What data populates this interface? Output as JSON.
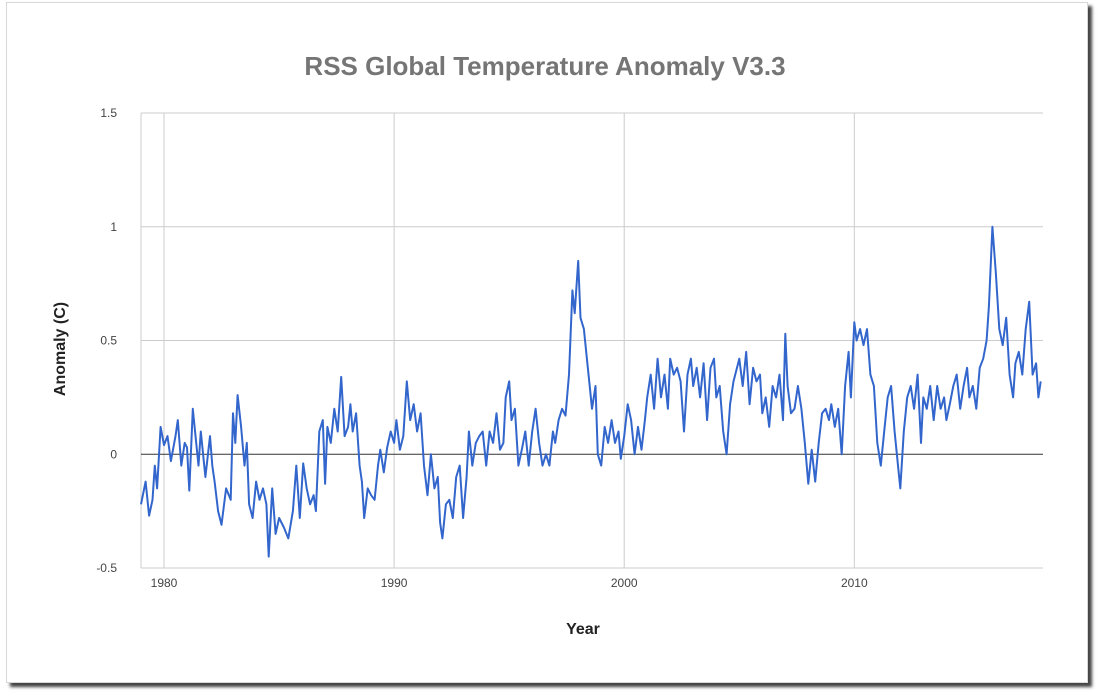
{
  "chart_data": {
    "type": "line",
    "title": "RSS Global Temperature Anomaly V3.3",
    "xlabel": "Year",
    "ylabel": "Anomaly (C)",
    "xlim": [
      1979,
      2018.2
    ],
    "ylim": [
      -0.5,
      1.5
    ],
    "x_ticks": [
      1980,
      1990,
      2000,
      2010
    ],
    "x_tick_labels": [
      "1980",
      "1990",
      "2000",
      "2010"
    ],
    "y_ticks": [
      -0.5,
      0,
      0.5,
      1,
      1.5
    ],
    "y_tick_labels": [
      "-0.5",
      "0",
      "0.5",
      "1",
      "1.5"
    ],
    "grid": true,
    "legend": "none",
    "colors": {
      "series": "#3366cc",
      "zero_line": "#333333",
      "grid": "#cccccc",
      "title": "#757575"
    },
    "series": [
      {
        "name": "Anomaly",
        "points": [
          [
            1979.0,
            -0.22
          ],
          [
            1979.2,
            -0.12
          ],
          [
            1979.35,
            -0.27
          ],
          [
            1979.5,
            -0.2
          ],
          [
            1979.6,
            -0.05
          ],
          [
            1979.7,
            -0.15
          ],
          [
            1979.85,
            0.12
          ],
          [
            1980.0,
            0.04
          ],
          [
            1980.15,
            0.08
          ],
          [
            1980.3,
            -0.03
          ],
          [
            1980.5,
            0.08
          ],
          [
            1980.6,
            0.15
          ],
          [
            1980.75,
            -0.05
          ],
          [
            1980.9,
            0.05
          ],
          [
            1981.0,
            0.03
          ],
          [
            1981.1,
            -0.16
          ],
          [
            1981.25,
            0.2
          ],
          [
            1981.4,
            0.05
          ],
          [
            1981.5,
            -0.05
          ],
          [
            1981.6,
            0.1
          ],
          [
            1981.8,
            -0.1
          ],
          [
            1982.0,
            0.08
          ],
          [
            1982.1,
            -0.05
          ],
          [
            1982.2,
            -0.12
          ],
          [
            1982.35,
            -0.25
          ],
          [
            1982.5,
            -0.31
          ],
          [
            1982.7,
            -0.15
          ],
          [
            1982.9,
            -0.2
          ],
          [
            1983.0,
            0.18
          ],
          [
            1983.1,
            0.05
          ],
          [
            1983.2,
            0.26
          ],
          [
            1983.35,
            0.12
          ],
          [
            1983.5,
            -0.05
          ],
          [
            1983.6,
            0.05
          ],
          [
            1983.7,
            -0.22
          ],
          [
            1983.85,
            -0.28
          ],
          [
            1984.0,
            -0.12
          ],
          [
            1984.15,
            -0.2
          ],
          [
            1984.3,
            -0.15
          ],
          [
            1984.45,
            -0.22
          ],
          [
            1984.55,
            -0.45
          ],
          [
            1984.7,
            -0.15
          ],
          [
            1984.85,
            -0.35
          ],
          [
            1985.0,
            -0.28
          ],
          [
            1985.2,
            -0.32
          ],
          [
            1985.4,
            -0.37
          ],
          [
            1985.6,
            -0.25
          ],
          [
            1985.75,
            -0.05
          ],
          [
            1985.9,
            -0.28
          ],
          [
            1986.05,
            -0.04
          ],
          [
            1986.2,
            -0.15
          ],
          [
            1986.35,
            -0.22
          ],
          [
            1986.5,
            -0.18
          ],
          [
            1986.6,
            -0.25
          ],
          [
            1986.75,
            0.1
          ],
          [
            1986.9,
            0.15
          ],
          [
            1987.0,
            -0.13
          ],
          [
            1987.1,
            0.12
          ],
          [
            1987.25,
            0.05
          ],
          [
            1987.4,
            0.2
          ],
          [
            1987.55,
            0.1
          ],
          [
            1987.7,
            0.34
          ],
          [
            1987.85,
            0.08
          ],
          [
            1988.0,
            0.12
          ],
          [
            1988.1,
            0.22
          ],
          [
            1988.2,
            0.1
          ],
          [
            1988.35,
            0.18
          ],
          [
            1988.5,
            -0.05
          ],
          [
            1988.6,
            -0.12
          ],
          [
            1988.7,
            -0.28
          ],
          [
            1988.85,
            -0.15
          ],
          [
            1989.0,
            -0.18
          ],
          [
            1989.15,
            -0.2
          ],
          [
            1989.3,
            -0.05
          ],
          [
            1989.4,
            0.02
          ],
          [
            1989.55,
            -0.08
          ],
          [
            1989.7,
            0.03
          ],
          [
            1989.85,
            0.1
          ],
          [
            1990.0,
            0.05
          ],
          [
            1990.1,
            0.15
          ],
          [
            1990.25,
            0.02
          ],
          [
            1990.4,
            0.08
          ],
          [
            1990.55,
            0.32
          ],
          [
            1990.7,
            0.15
          ],
          [
            1990.85,
            0.22
          ],
          [
            1991.0,
            0.1
          ],
          [
            1991.15,
            0.18
          ],
          [
            1991.3,
            -0.05
          ],
          [
            1991.45,
            -0.18
          ],
          [
            1991.6,
            0.0
          ],
          [
            1991.75,
            -0.15
          ],
          [
            1991.9,
            -0.1
          ],
          [
            1992.0,
            -0.3
          ],
          [
            1992.1,
            -0.37
          ],
          [
            1992.25,
            -0.22
          ],
          [
            1992.4,
            -0.2
          ],
          [
            1992.55,
            -0.28
          ],
          [
            1992.7,
            -0.1
          ],
          [
            1992.85,
            -0.05
          ],
          [
            1993.0,
            -0.28
          ],
          [
            1993.15,
            -0.1
          ],
          [
            1993.25,
            0.1
          ],
          [
            1993.4,
            -0.05
          ],
          [
            1993.55,
            0.05
          ],
          [
            1993.7,
            0.08
          ],
          [
            1993.85,
            0.1
          ],
          [
            1994.0,
            -0.05
          ],
          [
            1994.15,
            0.1
          ],
          [
            1994.3,
            0.05
          ],
          [
            1994.45,
            0.18
          ],
          [
            1994.6,
            0.02
          ],
          [
            1994.75,
            0.05
          ],
          [
            1994.85,
            0.25
          ],
          [
            1995.0,
            0.32
          ],
          [
            1995.1,
            0.15
          ],
          [
            1995.25,
            0.2
          ],
          [
            1995.4,
            -0.05
          ],
          [
            1995.55,
            0.02
          ],
          [
            1995.7,
            0.1
          ],
          [
            1995.85,
            -0.05
          ],
          [
            1996.0,
            0.1
          ],
          [
            1996.15,
            0.2
          ],
          [
            1996.3,
            0.05
          ],
          [
            1996.45,
            -0.05
          ],
          [
            1996.6,
            0.0
          ],
          [
            1996.75,
            -0.05
          ],
          [
            1996.9,
            0.1
          ],
          [
            1997.0,
            0.05
          ],
          [
            1997.15,
            0.15
          ],
          [
            1997.3,
            0.2
          ],
          [
            1997.45,
            0.17
          ],
          [
            1997.6,
            0.35
          ],
          [
            1997.75,
            0.72
          ],
          [
            1997.85,
            0.62
          ],
          [
            1998.0,
            0.85
          ],
          [
            1998.1,
            0.6
          ],
          [
            1998.25,
            0.55
          ],
          [
            1998.35,
            0.45
          ],
          [
            1998.5,
            0.3
          ],
          [
            1998.6,
            0.2
          ],
          [
            1998.75,
            0.3
          ],
          [
            1998.85,
            0.0
          ],
          [
            1999.0,
            -0.05
          ],
          [
            1999.15,
            0.12
          ],
          [
            1999.3,
            0.05
          ],
          [
            1999.45,
            0.15
          ],
          [
            1999.6,
            0.05
          ],
          [
            1999.75,
            0.1
          ],
          [
            1999.85,
            -0.02
          ],
          [
            2000.0,
            0.08
          ],
          [
            2000.15,
            0.22
          ],
          [
            2000.3,
            0.15
          ],
          [
            2000.45,
            0.0
          ],
          [
            2000.6,
            0.12
          ],
          [
            2000.75,
            0.02
          ],
          [
            2000.9,
            0.15
          ],
          [
            2001.0,
            0.25
          ],
          [
            2001.15,
            0.35
          ],
          [
            2001.3,
            0.2
          ],
          [
            2001.45,
            0.42
          ],
          [
            2001.6,
            0.25
          ],
          [
            2001.75,
            0.35
          ],
          [
            2001.9,
            0.2
          ],
          [
            2002.0,
            0.42
          ],
          [
            2002.15,
            0.35
          ],
          [
            2002.3,
            0.38
          ],
          [
            2002.45,
            0.32
          ],
          [
            2002.6,
            0.1
          ],
          [
            2002.75,
            0.35
          ],
          [
            2002.9,
            0.42
          ],
          [
            2003.0,
            0.3
          ],
          [
            2003.15,
            0.38
          ],
          [
            2003.3,
            0.25
          ],
          [
            2003.45,
            0.4
          ],
          [
            2003.6,
            0.15
          ],
          [
            2003.75,
            0.38
          ],
          [
            2003.9,
            0.42
          ],
          [
            2004.0,
            0.25
          ],
          [
            2004.15,
            0.3
          ],
          [
            2004.3,
            0.1
          ],
          [
            2004.45,
            0.0
          ],
          [
            2004.6,
            0.22
          ],
          [
            2004.75,
            0.32
          ],
          [
            2004.9,
            0.38
          ],
          [
            2005.0,
            0.42
          ],
          [
            2005.15,
            0.3
          ],
          [
            2005.3,
            0.45
          ],
          [
            2005.45,
            0.22
          ],
          [
            2005.6,
            0.38
          ],
          [
            2005.75,
            0.32
          ],
          [
            2005.9,
            0.35
          ],
          [
            2006.0,
            0.18
          ],
          [
            2006.15,
            0.25
          ],
          [
            2006.3,
            0.12
          ],
          [
            2006.45,
            0.3
          ],
          [
            2006.6,
            0.25
          ],
          [
            2006.75,
            0.35
          ],
          [
            2006.9,
            0.15
          ],
          [
            2007.0,
            0.53
          ],
          [
            2007.1,
            0.3
          ],
          [
            2007.25,
            0.18
          ],
          [
            2007.4,
            0.2
          ],
          [
            2007.55,
            0.3
          ],
          [
            2007.7,
            0.2
          ],
          [
            2007.85,
            0.05
          ],
          [
            2008.0,
            -0.13
          ],
          [
            2008.15,
            0.02
          ],
          [
            2008.3,
            -0.12
          ],
          [
            2008.45,
            0.05
          ],
          [
            2008.6,
            0.18
          ],
          [
            2008.75,
            0.2
          ],
          [
            2008.9,
            0.15
          ],
          [
            2009.0,
            0.22
          ],
          [
            2009.15,
            0.12
          ],
          [
            2009.3,
            0.2
          ],
          [
            2009.45,
            0.0
          ],
          [
            2009.6,
            0.3
          ],
          [
            2009.75,
            0.45
          ],
          [
            2009.85,
            0.25
          ],
          [
            2010.0,
            0.58
          ],
          [
            2010.1,
            0.5
          ],
          [
            2010.25,
            0.55
          ],
          [
            2010.4,
            0.48
          ],
          [
            2010.55,
            0.55
          ],
          [
            2010.7,
            0.35
          ],
          [
            2010.85,
            0.3
          ],
          [
            2011.0,
            0.05
          ],
          [
            2011.15,
            -0.05
          ],
          [
            2011.3,
            0.1
          ],
          [
            2011.45,
            0.25
          ],
          [
            2011.6,
            0.3
          ],
          [
            2011.75,
            0.1
          ],
          [
            2011.9,
            -0.05
          ],
          [
            2012.0,
            -0.15
          ],
          [
            2012.15,
            0.1
          ],
          [
            2012.3,
            0.25
          ],
          [
            2012.45,
            0.3
          ],
          [
            2012.6,
            0.2
          ],
          [
            2012.75,
            0.35
          ],
          [
            2012.9,
            0.05
          ],
          [
            2013.0,
            0.25
          ],
          [
            2013.15,
            0.2
          ],
          [
            2013.3,
            0.3
          ],
          [
            2013.45,
            0.15
          ],
          [
            2013.6,
            0.3
          ],
          [
            2013.75,
            0.2
          ],
          [
            2013.9,
            0.25
          ],
          [
            2014.0,
            0.15
          ],
          [
            2014.15,
            0.22
          ],
          [
            2014.3,
            0.3
          ],
          [
            2014.45,
            0.35
          ],
          [
            2014.6,
            0.2
          ],
          [
            2014.75,
            0.3
          ],
          [
            2014.9,
            0.38
          ],
          [
            2015.0,
            0.25
          ],
          [
            2015.15,
            0.3
          ],
          [
            2015.3,
            0.2
          ],
          [
            2015.45,
            0.38
          ],
          [
            2015.6,
            0.42
          ],
          [
            2015.75,
            0.5
          ],
          [
            2015.85,
            0.65
          ],
          [
            2016.0,
            1.0
          ],
          [
            2016.15,
            0.8
          ],
          [
            2016.3,
            0.55
          ],
          [
            2016.45,
            0.48
          ],
          [
            2016.6,
            0.6
          ],
          [
            2016.75,
            0.35
          ],
          [
            2016.9,
            0.25
          ],
          [
            2017.0,
            0.4
          ],
          [
            2017.15,
            0.45
          ],
          [
            2017.3,
            0.35
          ],
          [
            2017.45,
            0.55
          ],
          [
            2017.6,
            0.67
          ],
          [
            2017.75,
            0.35
          ],
          [
            2017.9,
            0.4
          ],
          [
            2018.0,
            0.25
          ],
          [
            2018.1,
            0.32
          ]
        ]
      }
    ]
  }
}
